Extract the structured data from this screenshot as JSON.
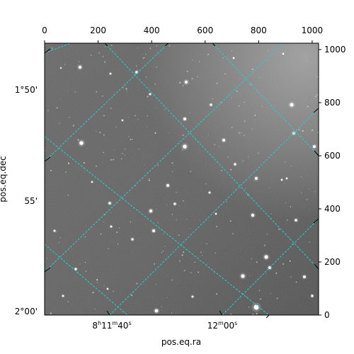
{
  "plot": {
    "xlabel": "pos.eq.ra",
    "ylabel": "pos.eq.dec",
    "top_ticks": [
      "0",
      "200",
      "400",
      "600",
      "800",
      "1000"
    ],
    "right_ticks": [
      "0",
      "200",
      "400",
      "600",
      "800",
      "1000"
    ],
    "ra_ticks": {
      "first": {
        "h": "8",
        "h_unit": "h",
        "m": "11",
        "m_unit": "m",
        "s": "40",
        "s_unit": "s"
      },
      "second": {
        "m": "12",
        "m_unit": "m",
        "s": "00",
        "s_unit": "s"
      }
    },
    "dec_ticks": [
      "1°50'",
      "55'",
      "2°00'"
    ],
    "grid_color": "#22d3d3",
    "frame_color": "#000000"
  },
  "image": {
    "description_colors": {
      "sky_dark": "#4e4e4e",
      "sky_light": "#9a9a9a",
      "star": "#ffffff"
    }
  }
}
